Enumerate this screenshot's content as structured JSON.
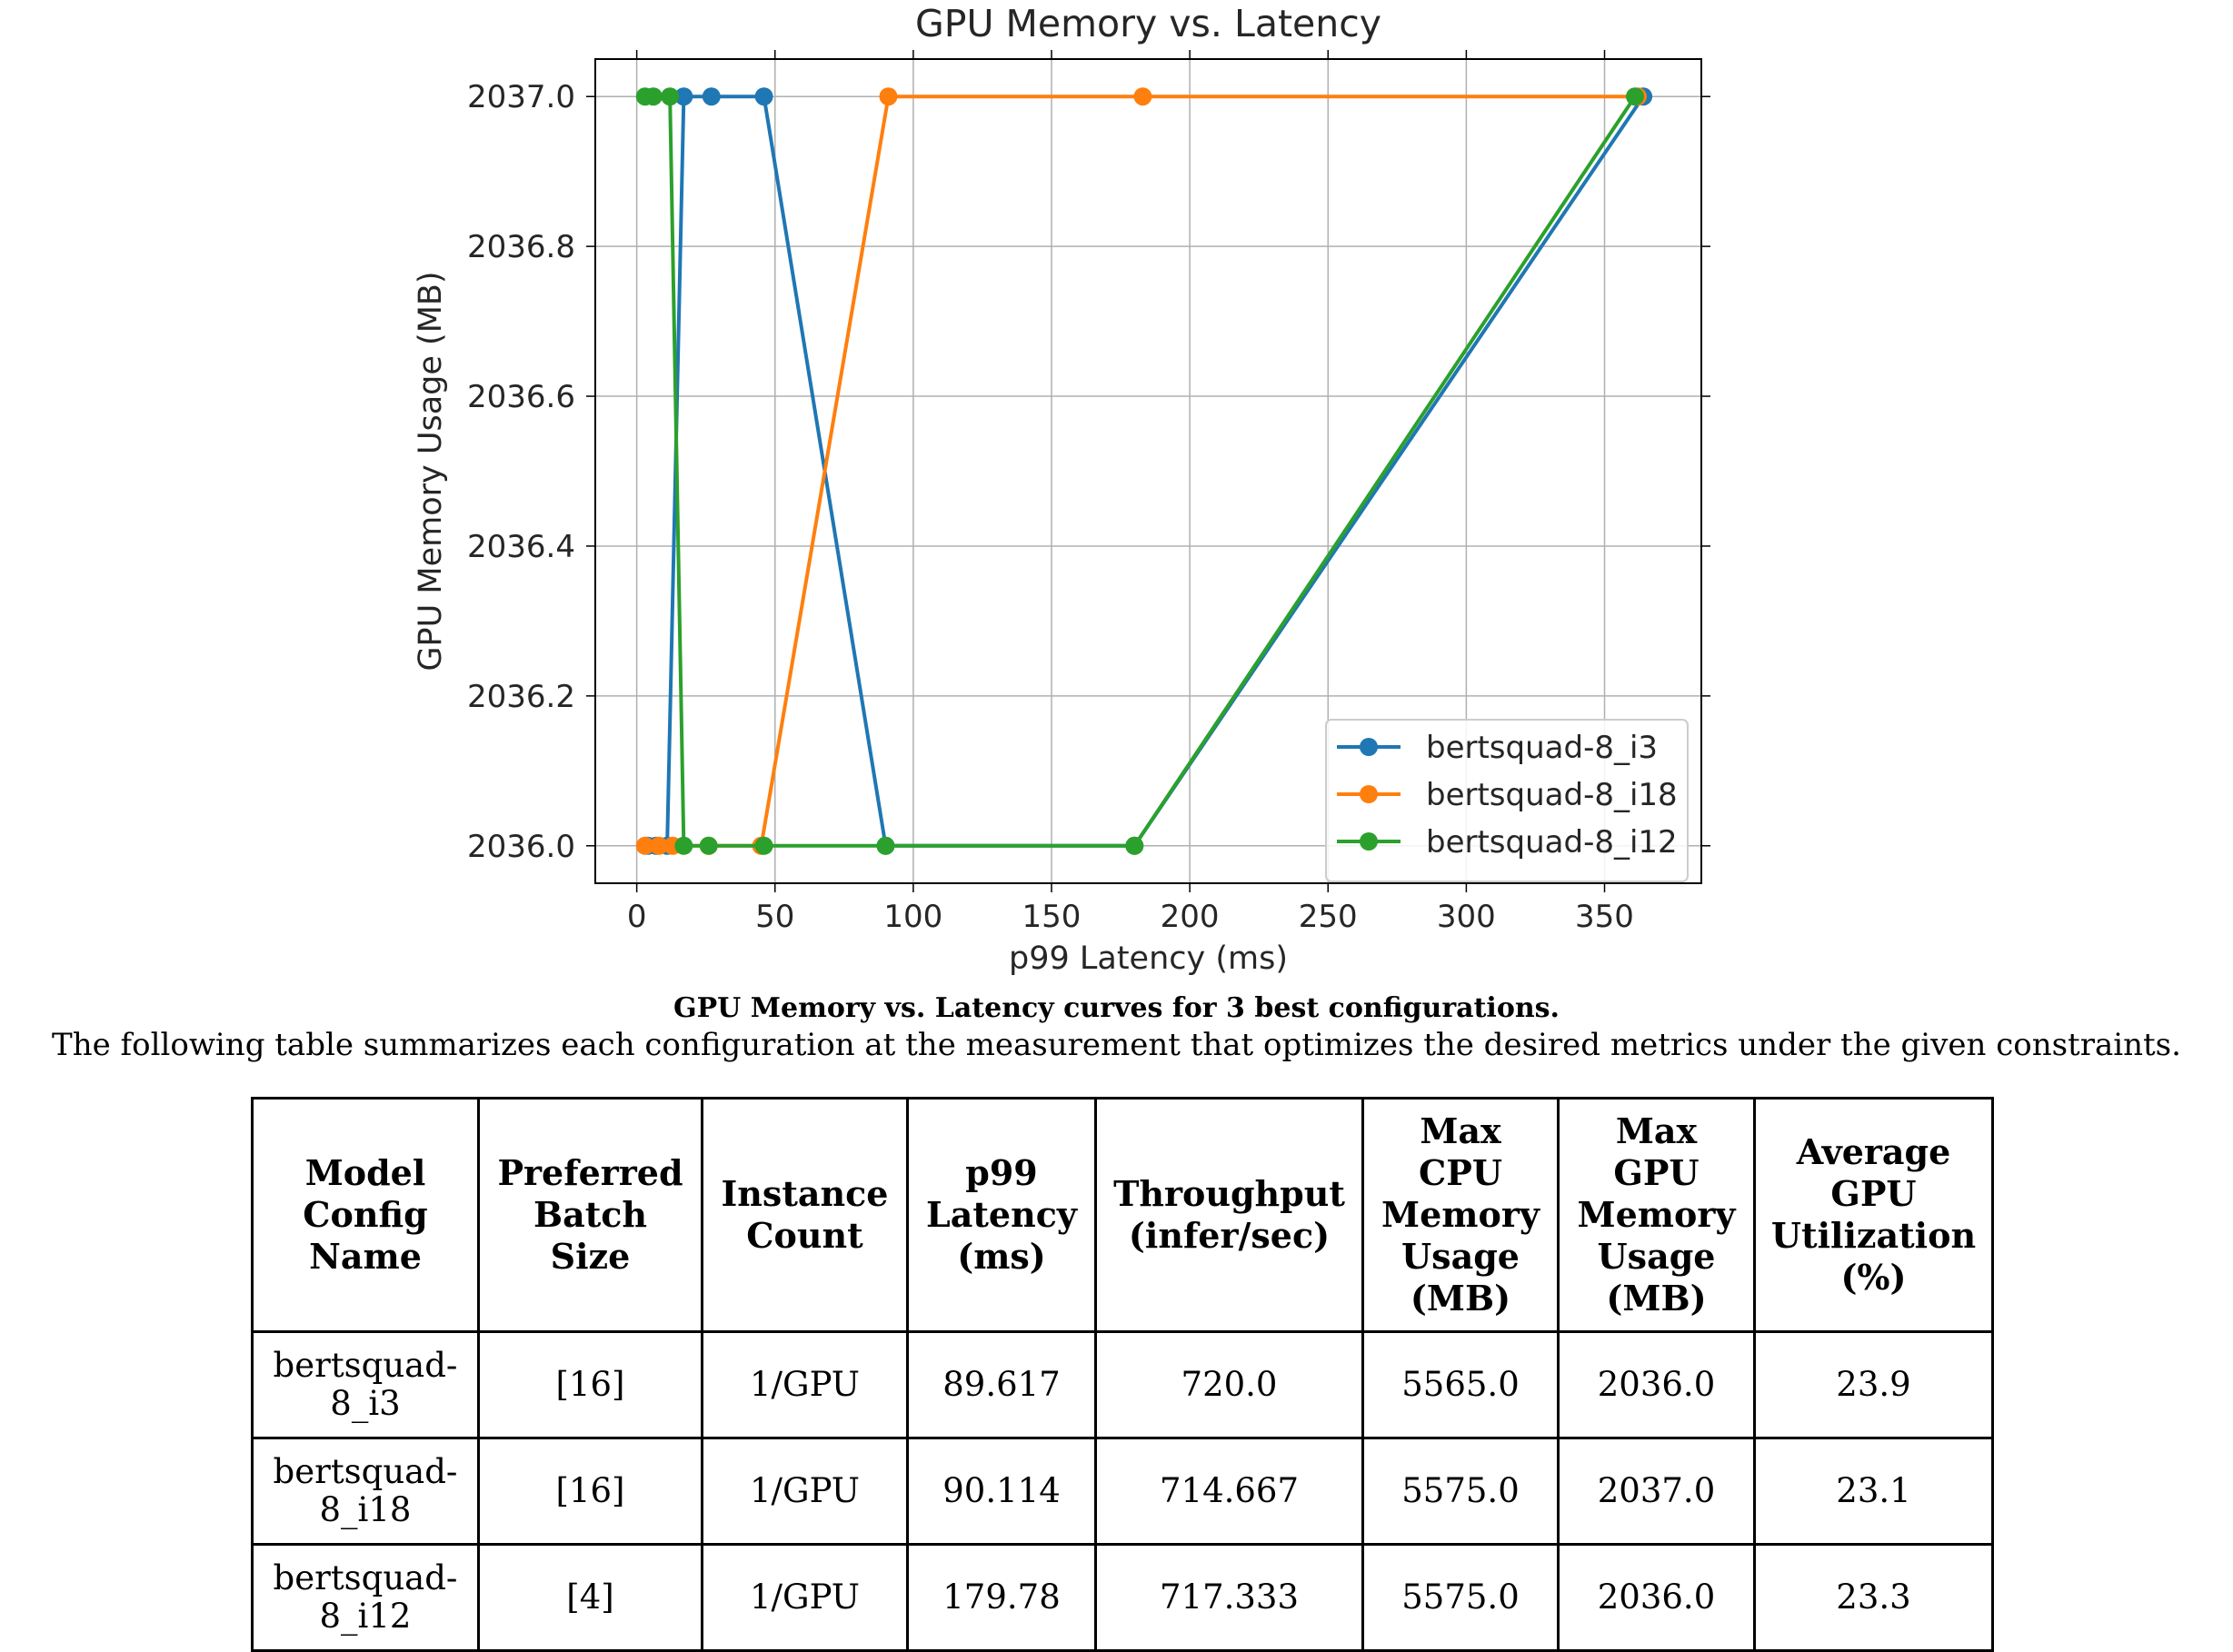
{
  "chart_data": {
    "type": "line",
    "title": "GPU Memory vs. Latency",
    "xlabel": "p99 Latency (ms)",
    "ylabel": "GPU Memory Usage (MB)",
    "xlim": [
      -15,
      385
    ],
    "ylim": [
      2035.95,
      2037.05
    ],
    "xticks": [
      "0",
      "50",
      "100",
      "150",
      "200",
      "250",
      "300",
      "350"
    ],
    "yticks": [
      "2036.0",
      "2036.2",
      "2036.4",
      "2036.6",
      "2036.8",
      "2037.0"
    ],
    "grid": true,
    "legend_position": "lower-right",
    "series": [
      {
        "name": "bertsquad-8_i3",
        "color": "#1f77b4",
        "points": [
          [
            4,
            2036.0
          ],
          [
            7,
            2036.0
          ],
          [
            11,
            2036.0
          ],
          [
            17,
            2037.0
          ],
          [
            27,
            2037.0
          ],
          [
            46,
            2037.0
          ],
          [
            90,
            2036.0
          ],
          [
            180,
            2036.0
          ],
          [
            364,
            2037.0
          ]
        ]
      },
      {
        "name": "bertsquad-8_i18",
        "color": "#ff7f0e",
        "points": [
          [
            3,
            2036.0
          ],
          [
            8,
            2036.0
          ],
          [
            13,
            2036.0
          ],
          [
            26,
            2036.0
          ],
          [
            45,
            2036.0
          ],
          [
            91,
            2037.0
          ],
          [
            183,
            2037.0
          ],
          [
            362,
            2037.0
          ]
        ]
      },
      {
        "name": "bertsquad-8_i12",
        "color": "#2ca02c",
        "points": [
          [
            3,
            2037.0
          ],
          [
            6,
            2037.0
          ],
          [
            12,
            2037.0
          ],
          [
            17,
            2036.0
          ],
          [
            26,
            2036.0
          ],
          [
            46,
            2036.0
          ],
          [
            90,
            2036.0
          ],
          [
            180,
            2036.0
          ],
          [
            361,
            2037.0
          ]
        ]
      }
    ]
  },
  "caption": {
    "title": "GPU Memory vs. Latency curves for 3 best configurations.",
    "text": "The following table summarizes each configuration at the measurement that optimizes the desired metrics under the given constraints."
  },
  "table": {
    "headers": [
      "Model Config Name",
      "Preferred Batch Size",
      "Instance Count",
      "p99 Latency (ms)",
      "Throughput (infer/sec)",
      "Max CPU Memory Usage (MB)",
      "Max GPU Memory Usage (MB)",
      "Average GPU Utilization (%)"
    ],
    "rows": [
      [
        "bertsquad-8_i3",
        "[16]",
        "1/GPU",
        "89.617",
        "720.0",
        "5565.0",
        "2036.0",
        "23.9"
      ],
      [
        "bertsquad-8_i18",
        "[16]",
        "1/GPU",
        "90.114",
        "714.667",
        "5575.0",
        "2037.0",
        "23.1"
      ],
      [
        "bertsquad-8_i12",
        "[4]",
        "1/GPU",
        "179.78",
        "717.333",
        "5575.0",
        "2036.0",
        "23.3"
      ]
    ]
  }
}
